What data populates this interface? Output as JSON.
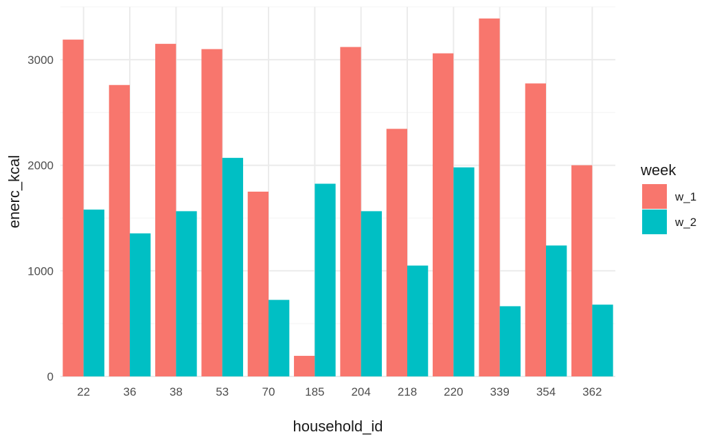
{
  "chart_data": {
    "type": "bar",
    "xlabel": "household_id",
    "ylabel": "enerc_kcal",
    "categories": [
      "22",
      "36",
      "38",
      "53",
      "70",
      "185",
      "204",
      "218",
      "220",
      "339",
      "354",
      "362"
    ],
    "series": [
      {
        "name": "w_1",
        "color": "#F8766D",
        "values": [
          3190,
          2760,
          3150,
          3100,
          1750,
          195,
          3120,
          2345,
          3060,
          3390,
          2775,
          2000
        ]
      },
      {
        "name": "w_2",
        "color": "#00BFC4",
        "values": [
          1580,
          1355,
          1565,
          2070,
          725,
          1825,
          1565,
          1050,
          1980,
          665,
          1240,
          680
        ]
      }
    ],
    "ylim": [
      0,
      3500
    ],
    "yticks": [
      0,
      1000,
      2000,
      3000
    ],
    "grid": true,
    "legend": {
      "title": "week",
      "placement": "right"
    }
  }
}
